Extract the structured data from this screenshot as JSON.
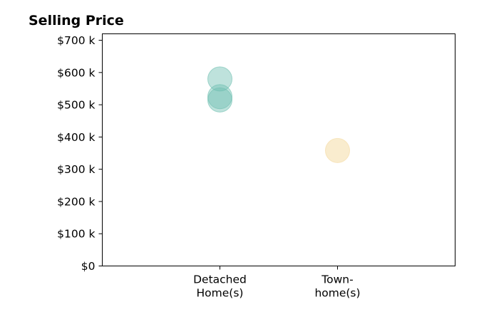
{
  "chart_data": {
    "type": "scatter",
    "title": "Selling Price",
    "xlabel": "",
    "ylabel": "",
    "categories": [
      [
        "Detached",
        "Home(s)"
      ],
      [
        "Town-",
        "home(s)"
      ]
    ],
    "xlim": [
      0,
      3
    ],
    "ylim": [
      0,
      720000
    ],
    "y_ticks": [
      0,
      100000,
      200000,
      300000,
      400000,
      500000,
      600000,
      700000
    ],
    "y_tick_labels": [
      "$0",
      "$100 k",
      "$200 k",
      "$300 k",
      "$400 k",
      "$500 k",
      "$600 k",
      "$700 k"
    ],
    "grid": false,
    "legend": "none",
    "series": [
      {
        "category_index": 0,
        "color": "#6fbfb1",
        "opacity": 0.45,
        "points": [
          {
            "x": 1,
            "y": 580000
          },
          {
            "x": 1,
            "y": 525000
          },
          {
            "x": 1,
            "y": 515000
          }
        ]
      },
      {
        "category_index": 1,
        "color": "#f5dfae",
        "opacity": 0.6,
        "points": [
          {
            "x": 2,
            "y": 358000
          }
        ]
      }
    ]
  }
}
